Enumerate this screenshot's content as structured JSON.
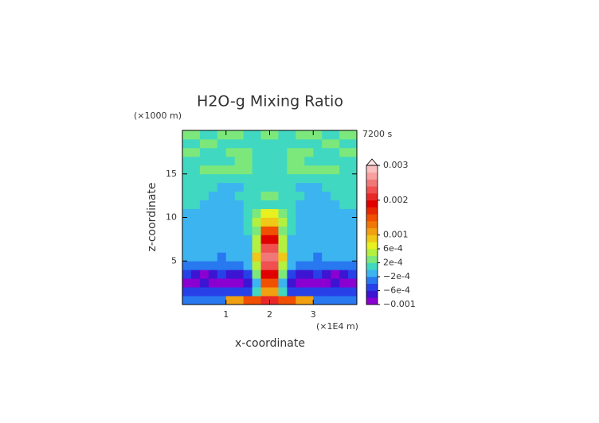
{
  "chart_data": {
    "type": "contour",
    "title": "H2O-g Mixing Ratio",
    "y_unit": "(×1000 m)",
    "x_unit": "(×1E4 m)",
    "time_label": "7200 s",
    "xlabel": "x-coordinate",
    "ylabel": "z-coordinate",
    "xlim": [
      0,
      4
    ],
    "ylim": [
      0,
      20
    ],
    "xticks": [
      1,
      2,
      3
    ],
    "yticks": [
      5,
      10,
      15
    ],
    "x": [
      0.1,
      0.3,
      0.5,
      0.7,
      0.9,
      1.1,
      1.3,
      1.5,
      1.7,
      1.9,
      2.1,
      2.3,
      2.5,
      2.7,
      2.9,
      3.1,
      3.3,
      3.5,
      3.7,
      3.9
    ],
    "z": [
      0.5,
      1.5,
      2.5,
      3.5,
      4.5,
      5.5,
      6.5,
      7.5,
      8.5,
      9.5,
      10.5,
      11.5,
      12.5,
      13.5,
      14.5,
      15.5,
      16.5,
      17.5,
      18.5,
      19.5
    ],
    "values": [
      [
        -0.0003,
        -0.0003,
        -0.0003,
        -0.0003,
        -0.0003,
        0.0012,
        0.0012,
        0.0014,
        0.0014,
        0.002,
        0.002,
        0.0014,
        0.0014,
        0.0012,
        0.0012,
        -0.0003,
        -0.0003,
        -0.0003,
        -0.0003,
        -0.0003
      ],
      [
        -0.0005,
        -0.0006,
        -0.0006,
        -0.0005,
        -0.0005,
        -0.0006,
        -0.0006,
        -0.0005,
        0,
        0.001,
        0.001,
        0,
        -0.0005,
        -0.0006,
        -0.0006,
        -0.0005,
        -0.0005,
        -0.0006,
        -0.0006,
        -0.0005
      ],
      [
        -0.0008,
        -0.0008,
        -0.0007,
        -0.0008,
        -0.0009,
        -0.0008,
        -0.0008,
        -0.0007,
        -0.0002,
        0.0014,
        0.0014,
        -0.0002,
        -0.0007,
        -0.0008,
        -0.0008,
        -0.0009,
        -0.0008,
        -0.0007,
        -0.0008,
        -0.0008
      ],
      [
        -0.0006,
        -0.0007,
        -0.0008,
        -0.0007,
        -0.0006,
        -0.0007,
        -0.0007,
        -0.0006,
        0.0002,
        0.0018,
        0.0018,
        0.0002,
        -0.0006,
        -0.0007,
        -0.0007,
        -0.0006,
        -0.0007,
        -0.0008,
        -0.0007,
        -0.0006
      ],
      [
        -0.0003,
        -0.0004,
        -0.0004,
        -0.0003,
        -0.0004,
        -0.0004,
        -0.0003,
        -0.0002,
        0.0006,
        0.0022,
        0.0022,
        0.0006,
        -0.0002,
        -0.0003,
        -0.0004,
        -0.0004,
        -0.0003,
        -0.0004,
        -0.0004,
        -0.0003
      ],
      [
        -0.0002,
        -0.0002,
        -0.0001,
        -0.0002,
        -0.0003,
        -0.0002,
        -0.0002,
        -0.0001,
        0.0008,
        0.0024,
        0.0024,
        0.0008,
        -0.0001,
        -0.0002,
        -0.0002,
        -0.0003,
        -0.0002,
        -0.0001,
        -0.0002,
        -0.0002
      ],
      [
        -0.0001,
        -0.0001,
        -0.0002,
        -0.0001,
        -0.0001,
        -0.0002,
        -0.0001,
        -0.0001,
        0.0006,
        0.0022,
        0.0022,
        0.0006,
        -0.0001,
        -0.0001,
        -0.0002,
        -0.0001,
        -0.0001,
        -0.0002,
        -0.0001,
        -0.0001
      ],
      [
        -0.0001,
        -0.0002,
        -0.0001,
        -0.0001,
        -0.0001,
        -0.0001,
        -0.0002,
        -0.0001,
        0.0004,
        0.0018,
        0.0018,
        0.0004,
        -0.0001,
        -0.0002,
        -0.0001,
        -0.0001,
        -0.0001,
        -0.0001,
        -0.0002,
        -0.0001
      ],
      [
        -0.0002,
        -0.0001,
        -0.0001,
        -0.0002,
        -0.0001,
        -0.0001,
        -0.0001,
        0,
        0.0003,
        0.0014,
        0.0014,
        0.0003,
        0,
        -0.0001,
        -0.0001,
        -0.0001,
        -0.0002,
        -0.0001,
        -0.0001,
        -0.0002
      ],
      [
        -0.0001,
        -0.0001,
        -0.0002,
        -0.0001,
        -0.0001,
        -0.0001,
        -0.0001,
        0.0001,
        0.0006,
        0.0009,
        0.0009,
        0.0006,
        0.0001,
        -0.0001,
        -0.0001,
        -0.0001,
        -0.0001,
        -0.0002,
        -0.0001,
        -0.0001
      ],
      [
        -0.0001,
        -0.0001,
        -0.0001,
        -0.0001,
        -0.0001,
        -0.0001,
        -0.0001,
        0,
        0.0002,
        0.0007,
        0.0007,
        0.0002,
        0,
        -0.0001,
        -0.0001,
        -0.0001,
        -0.0001,
        -0.0001,
        -0.0001,
        -0.0001
      ],
      [
        0.0001,
        0.0001,
        -0.0001,
        -0.0001,
        -0.0001,
        -0.0001,
        -0.0001,
        0,
        0,
        0.0001,
        0.0001,
        0,
        0,
        -0.0001,
        -0.0001,
        -0.0001,
        -0.0001,
        -0.0001,
        0.0001,
        0.0001
      ],
      [
        0.0001,
        0.0001,
        0.0001,
        -0.0001,
        -0.0001,
        -0.0001,
        0.0001,
        0,
        0,
        0.0002,
        0.0002,
        0,
        0,
        0.0001,
        -0.0001,
        -0.0001,
        -0.0001,
        0.0001,
        0.0001,
        0.0001
      ],
      [
        0.0001,
        0.0001,
        0.0001,
        0.0001,
        -0.0001,
        -0.0001,
        -0.0001,
        0.0001,
        0.0001,
        0,
        0,
        0.0001,
        0.0001,
        -0.0001,
        -0.0001,
        -0.0001,
        0.0001,
        0.0001,
        0.0001,
        0.0001
      ],
      [
        0.0001,
        0.0001,
        0.0001,
        0.0001,
        0.0001,
        0.0001,
        0.0001,
        0.0001,
        0,
        0.0001,
        0.0001,
        0,
        0.0001,
        0.0001,
        0.0001,
        0.0001,
        0.0001,
        0.0001,
        0.0001,
        0.0001
      ],
      [
        0.0001,
        0.0001,
        0.0003,
        0.0003,
        0.0003,
        0.0003,
        0.0003,
        0.0002,
        0.0001,
        0.0001,
        0.0001,
        0.0001,
        0.0002,
        0.0003,
        0.0003,
        0.0003,
        0.0003,
        0.0003,
        0.0001,
        0.0001
      ],
      [
        0.0001,
        0.0001,
        0.0001,
        0.0001,
        0.0001,
        0.0001,
        0.0003,
        0.0003,
        0.0001,
        0.0001,
        0.0001,
        0.0001,
        0.0003,
        0.0003,
        0.0001,
        0.0001,
        0.0001,
        0.0001,
        0.0001,
        0.0001
      ],
      [
        0.0003,
        0.0003,
        0.0001,
        0.0001,
        0.0001,
        0.0003,
        0.0003,
        0.0003,
        0.0001,
        0.0001,
        0.0001,
        0.0001,
        0.0003,
        0.0003,
        0.0003,
        0.0001,
        0.0001,
        0.0001,
        0.0003,
        0.0003
      ],
      [
        0.0001,
        0.0001,
        0.0003,
        0.0003,
        0.0001,
        0.0001,
        0.0001,
        0.0001,
        0.0001,
        0.0001,
        0.0001,
        0.0001,
        0.0001,
        0.0001,
        0.0001,
        0.0001,
        0.0003,
        0.0003,
        0.0001,
        0.0001
      ],
      [
        0.0003,
        0.0003,
        0.0001,
        0.0001,
        0.0003,
        0.0003,
        0.0003,
        0.0001,
        0.0001,
        0.0003,
        0.0003,
        0.0001,
        0.0001,
        0.0003,
        0.0003,
        0.0003,
        0.0001,
        0.0001,
        0.0003,
        0.0003
      ]
    ],
    "clim": [
      -0.001,
      0.003
    ],
    "colors": [
      "#8a00d0",
      "#3c14d2",
      "#2840e8",
      "#2878f0",
      "#3cb4f0",
      "#40d8c0",
      "#7ce87c",
      "#b4f040",
      "#e8f020",
      "#f0c818",
      "#f0a010",
      "#f07808",
      "#f05000",
      "#e82800",
      "#e00000",
      "#e82828",
      "#f05050",
      "#f07878",
      "#f8a0a0",
      "#f8c0c0"
    ],
    "over_color": "#ffe4e4",
    "cticks": [
      0.003,
      0.002,
      0.001,
      {
        "value": 0.0006,
        "label": "6e-4"
      },
      {
        "value": 0.0002,
        "label": "2e-4"
      },
      {
        "value": -0.0002,
        "label": "−2e-4"
      },
      {
        "value": -0.0006,
        "label": "−6e-4"
      },
      {
        "value": -0.001,
        "label": "−0.001"
      }
    ]
  }
}
